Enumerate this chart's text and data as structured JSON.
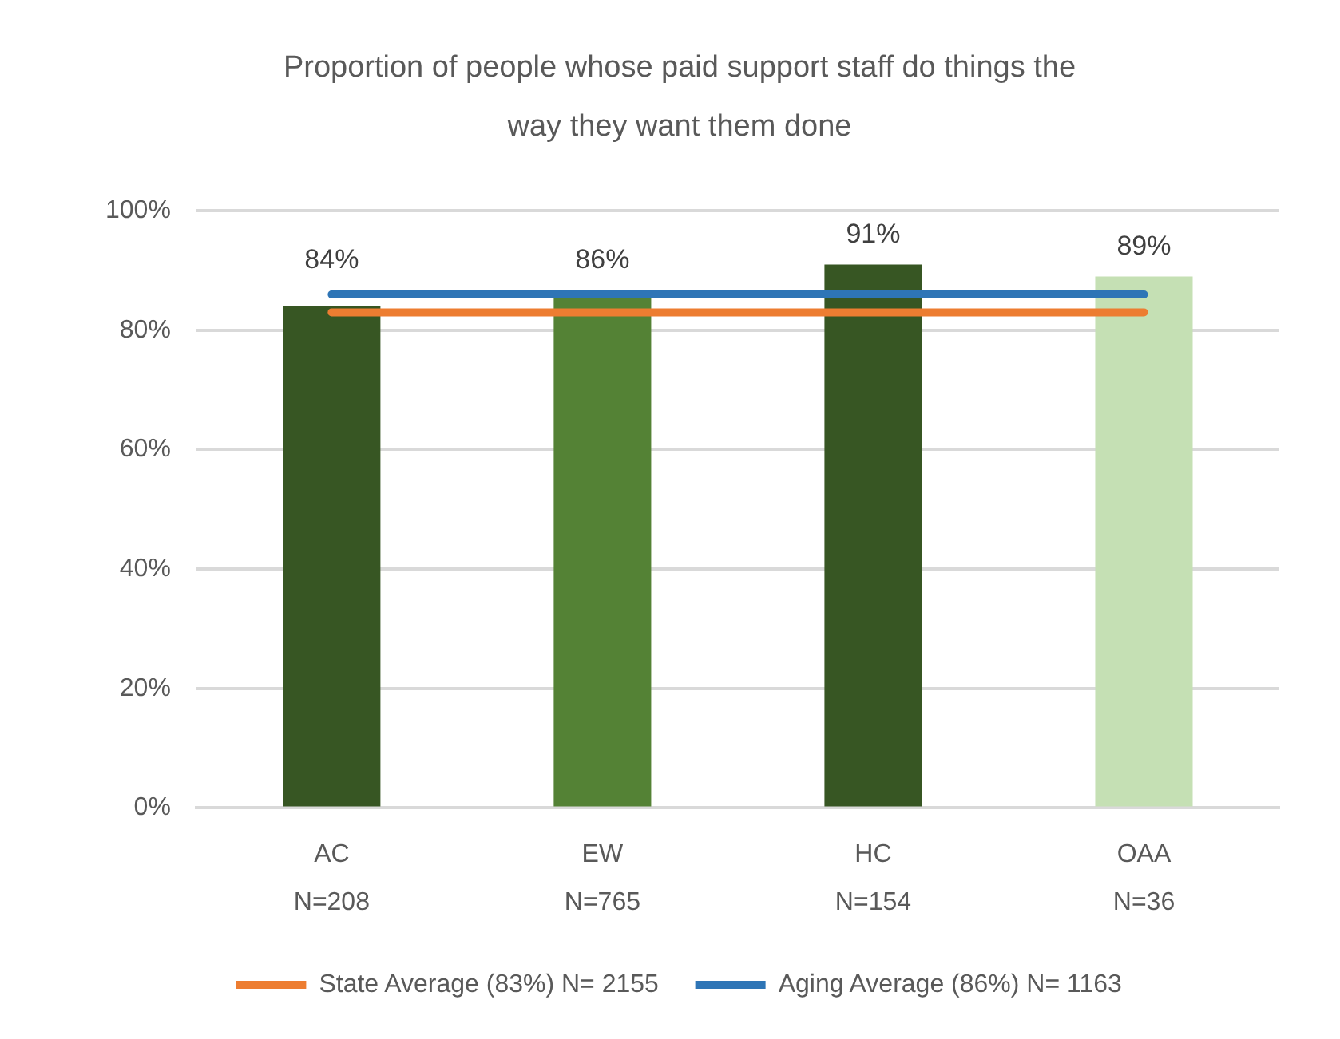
{
  "chart_data": {
    "type": "bar",
    "title": "Proportion of people whose paid support staff do things the way they want them done",
    "categories": [
      "AC\nN=208",
      "EW\nN=765",
      "HC\nN=154",
      "OAA\nN=36"
    ],
    "series": [
      {
        "values": [
          84,
          86,
          91,
          89
        ],
        "colors": [
          "#375623",
          "#548235",
          "#375623",
          "#c5e0b4"
        ],
        "value_labels": [
          "84%",
          "86%",
          "91%",
          "89%"
        ]
      },
      {
        "type": "line",
        "name": "State Average (83%) N= 2155",
        "color": "#ed7d31",
        "values": [
          83,
          83,
          83,
          83
        ]
      },
      {
        "type": "line",
        "name": "Aging Average (86%) N= 1163",
        "color": "#2e75b6",
        "values": [
          86,
          86,
          86,
          86
        ]
      }
    ],
    "ylim": [
      0,
      100
    ],
    "yticks": [
      {
        "value": 0,
        "label": "0%"
      },
      {
        "value": 20,
        "label": "20%"
      },
      {
        "value": 40,
        "label": "40%"
      },
      {
        "value": 60,
        "label": "60%"
      },
      {
        "value": 80,
        "label": "80%"
      },
      {
        "value": 100,
        "label": "100%"
      }
    ],
    "grid": "y",
    "legend": "bottom",
    "marker": "none",
    "line_style": "solid"
  }
}
